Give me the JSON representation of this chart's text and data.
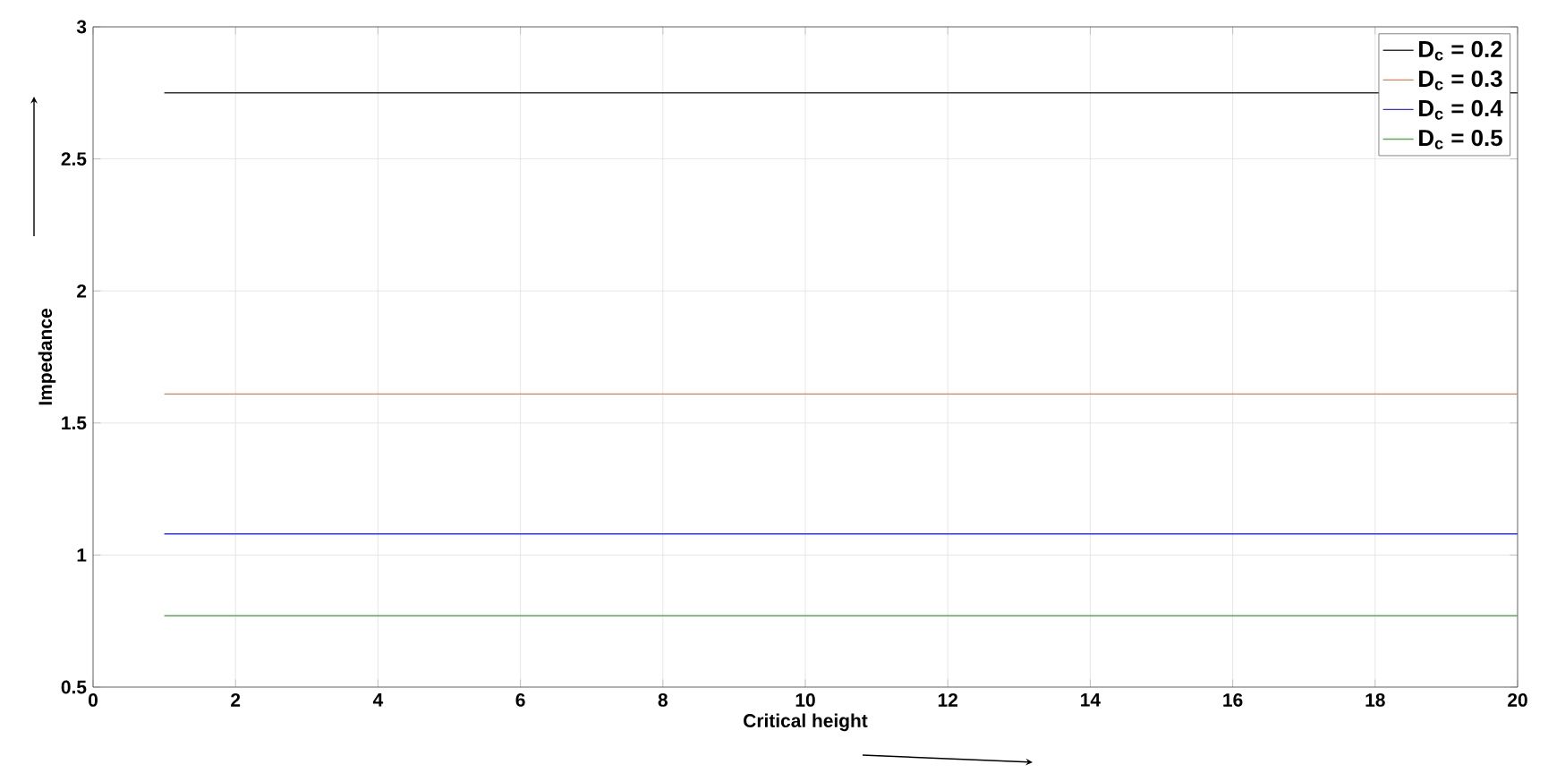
{
  "chart_data": {
    "type": "line",
    "xlabel": "Critical height",
    "ylabel": "Impedance",
    "x": [
      1,
      20
    ],
    "series": [
      {
        "name": "D$_{c}$ = 0.2",
        "color": "#333333",
        "values": [
          2.75,
          2.75
        ]
      },
      {
        "name": "D$_{c}$ = 0.3",
        "color": "#d9825b",
        "values": [
          1.61,
          1.61
        ]
      },
      {
        "name": "D$_{c}$ = 0.4",
        "color": "#3333ff",
        "values": [
          1.08,
          1.08
        ]
      },
      {
        "name": "D$_{c}$ = 0.5",
        "color": "#5aa95a",
        "values": [
          0.77,
          0.77
        ]
      }
    ],
    "xlim": [
      0,
      20
    ],
    "ylim": [
      0.5,
      3
    ],
    "xticks": [
      0,
      2,
      4,
      6,
      8,
      10,
      12,
      14,
      16,
      18,
      20
    ],
    "yticks": [
      0.5,
      1,
      1.5,
      2,
      2.5,
      3
    ],
    "grid": true,
    "legend": "top right",
    "marker": "none",
    "line_style": "solid"
  }
}
